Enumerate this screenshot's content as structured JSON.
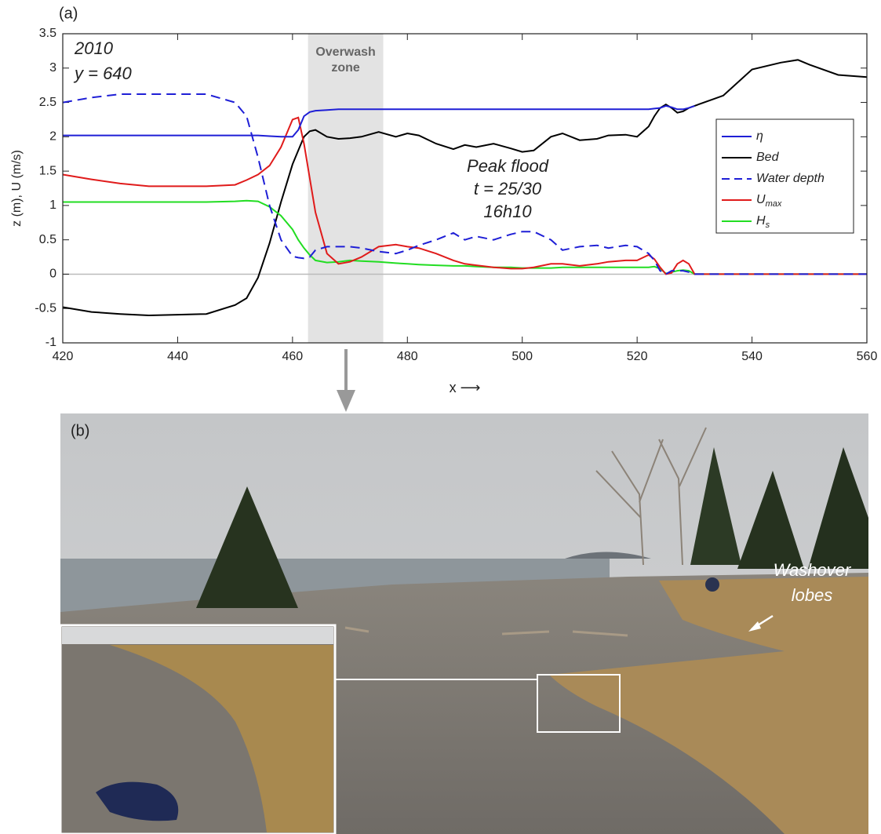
{
  "panel_a": {
    "label": "(a)"
  },
  "chart_data": {
    "type": "line",
    "x_label": "x ⟶",
    "y_label": "z (m), U (m/s)",
    "xlim": [
      420,
      560
    ],
    "xticks": [
      420,
      440,
      460,
      480,
      500,
      520,
      540,
      560
    ],
    "ylim": [
      -1,
      3.5
    ],
    "yticks": [
      -1,
      -0.5,
      0,
      0.5,
      1,
      1.5,
      2,
      2.5,
      3,
      3.5
    ],
    "zero_line": 0,
    "shaded_region": {
      "xlim": [
        462.7,
        475.8
      ],
      "label_line1": "Overwash",
      "label_line2": "zone"
    },
    "annotations": {
      "year": "2010",
      "transect": "y = 640",
      "event_line1": "Peak flood",
      "event_line2": "t = 25/30",
      "event_line3": "16h10"
    },
    "x": [
      420,
      425,
      430,
      435,
      440,
      445,
      450,
      452,
      454,
      456,
      458,
      460,
      461,
      462,
      463,
      464,
      466,
      468,
      470,
      472,
      475,
      478,
      480,
      482,
      485,
      488,
      490,
      492,
      495,
      498,
      500,
      502,
      505,
      507,
      510,
      513,
      515,
      518,
      520,
      522,
      523,
      524,
      525,
      526,
      527,
      528,
      529,
      530,
      535,
      540,
      545,
      548,
      550,
      555,
      560
    ],
    "series": [
      {
        "name": "η",
        "color": "#1f1fd6",
        "dash": false,
        "values": [
          2.02,
          2.02,
          2.02,
          2.02,
          2.02,
          2.02,
          2.02,
          2.02,
          2.02,
          2.01,
          2.0,
          2.0,
          2.1,
          2.3,
          2.36,
          2.38,
          2.39,
          2.4,
          2.4,
          2.4,
          2.4,
          2.4,
          2.4,
          2.4,
          2.4,
          2.4,
          2.4,
          2.4,
          2.4,
          2.4,
          2.4,
          2.4,
          2.4,
          2.4,
          2.4,
          2.4,
          2.4,
          2.4,
          2.4,
          2.4,
          2.41,
          2.42,
          2.45,
          2.43,
          2.4,
          2.4,
          2.42,
          2.45,
          null,
          null,
          null,
          null,
          null,
          null,
          null
        ]
      },
      {
        "name": "Bed",
        "color": "#000000",
        "dash": false,
        "values": [
          -0.48,
          -0.55,
          -0.58,
          -0.6,
          -0.59,
          -0.58,
          -0.45,
          -0.35,
          -0.05,
          0.45,
          1.05,
          1.6,
          1.8,
          2.0,
          2.08,
          2.1,
          2.0,
          1.97,
          1.98,
          2.0,
          2.07,
          2.0,
          2.05,
          2.02,
          1.9,
          1.82,
          1.88,
          1.85,
          1.9,
          1.83,
          1.78,
          1.8,
          2.0,
          2.05,
          1.95,
          1.97,
          2.02,
          2.03,
          2.0,
          2.15,
          2.3,
          2.42,
          2.47,
          2.42,
          2.35,
          2.37,
          2.42,
          2.45,
          2.6,
          2.98,
          3.08,
          3.12,
          3.05,
          2.9,
          2.87
        ]
      },
      {
        "name": "Water depth",
        "color": "#1f1fd6",
        "dash": true,
        "values": [
          2.5,
          2.57,
          2.62,
          2.62,
          2.62,
          2.62,
          2.5,
          2.3,
          1.7,
          1.0,
          0.5,
          0.26,
          0.24,
          0.23,
          0.25,
          0.35,
          0.4,
          0.4,
          0.4,
          0.38,
          0.33,
          0.3,
          0.35,
          0.42,
          0.5,
          0.6,
          0.5,
          0.55,
          0.5,
          0.58,
          0.62,
          0.62,
          0.5,
          0.35,
          0.4,
          0.42,
          0.38,
          0.42,
          0.4,
          0.3,
          0.2,
          0.05,
          0.0,
          0.05,
          0.05,
          0.05,
          0.03,
          0.0,
          0,
          0,
          0,
          0,
          0,
          0,
          0
        ]
      },
      {
        "name": "U",
        "name_subscript": "max",
        "color": "#e01b1b",
        "dash": false,
        "values": [
          1.45,
          1.38,
          1.32,
          1.28,
          1.28,
          1.28,
          1.3,
          1.37,
          1.45,
          1.58,
          1.85,
          2.25,
          2.28,
          1.9,
          1.4,
          0.9,
          0.3,
          0.15,
          0.18,
          0.25,
          0.4,
          0.43,
          0.4,
          0.38,
          0.3,
          0.2,
          0.15,
          0.13,
          0.1,
          0.08,
          0.08,
          0.1,
          0.15,
          0.15,
          0.12,
          0.15,
          0.18,
          0.2,
          0.2,
          0.28,
          0.22,
          0.1,
          0.0,
          0.02,
          0.15,
          0.2,
          0.15,
          0.0,
          0,
          0,
          0,
          0,
          0,
          0,
          0
        ]
      },
      {
        "name": "H",
        "name_subscript": "s",
        "color": "#22dd22",
        "dash": false,
        "values": [
          1.05,
          1.05,
          1.05,
          1.05,
          1.05,
          1.05,
          1.06,
          1.07,
          1.06,
          0.98,
          0.85,
          0.65,
          0.5,
          0.38,
          0.28,
          0.2,
          0.17,
          0.18,
          0.2,
          0.19,
          0.18,
          0.16,
          0.15,
          0.14,
          0.13,
          0.12,
          0.12,
          0.11,
          0.1,
          0.1,
          0.09,
          0.09,
          0.09,
          0.1,
          0.1,
          0.1,
          0.1,
          0.1,
          0.1,
          0.1,
          0.11,
          0.08,
          0.01,
          0.03,
          0.05,
          0.06,
          0.05,
          0.0,
          0,
          0,
          0,
          0,
          0,
          0,
          0
        ]
      }
    ]
  },
  "panel_b": {
    "label": "(b)",
    "annotation_line1": "Washover",
    "annotation_line2": "lobes"
  }
}
